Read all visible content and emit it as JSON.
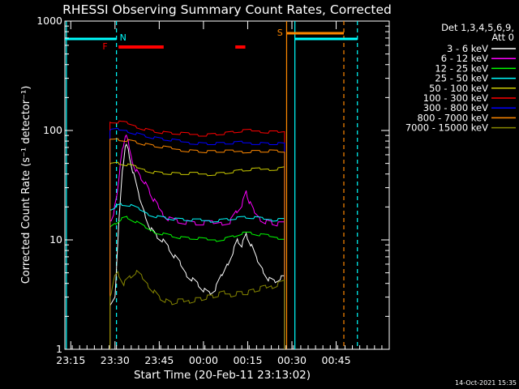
{
  "chart_data": {
    "type": "line",
    "title": "RHESSI Observing Summary Count Rates, Corrected",
    "xlabel": "Start Time (20-Feb-11 23:13:02)",
    "ylabel": "Corrected Count Rate (s⁻¹ detector⁻¹)",
    "y_scale": "log",
    "ylim": [
      1,
      1000
    ],
    "y_ticks": [
      {
        "value": 1,
        "label": "1"
      },
      {
        "value": 10,
        "label": "10"
      },
      {
        "value": 100,
        "label": "100"
      },
      {
        "value": 1000,
        "label": "1000"
      }
    ],
    "x_unit": "minutes after 23:13:02",
    "xlim": [
      0,
      110
    ],
    "x_ticks": [
      {
        "t": 2,
        "label": "23:15"
      },
      {
        "t": 17,
        "label": "23:30"
      },
      {
        "t": 32,
        "label": "23:45"
      },
      {
        "t": 47,
        "label": "00:00"
      },
      {
        "t": 62,
        "label": "00:15"
      },
      {
        "t": 77,
        "label": "00:30"
      },
      {
        "t": 92,
        "label": "00:45"
      }
    ],
    "legend_header": [
      "Det 1,3,4,5,6,9,",
      "Att 0"
    ],
    "legend_position": "top-right, outside",
    "series": [
      {
        "name": "3 - 6 keV",
        "color": "#ffffff",
        "points": [
          [
            15.3,
            2.5
          ],
          [
            17,
            3
          ],
          [
            18,
            11
          ],
          [
            19.5,
            42
          ],
          [
            20.5,
            75
          ],
          [
            21.5,
            65
          ],
          [
            23,
            42
          ],
          [
            25,
            25
          ],
          [
            27,
            18
          ],
          [
            29,
            13
          ],
          [
            31,
            11
          ],
          [
            33,
            10
          ],
          [
            35,
            8.5
          ],
          [
            37,
            7
          ],
          [
            39,
            6
          ],
          [
            41,
            5
          ],
          [
            43,
            4.5
          ],
          [
            45,
            4
          ],
          [
            47,
            3.5
          ],
          [
            49,
            3.2
          ],
          [
            51,
            3.5
          ],
          [
            53,
            4.5
          ],
          [
            55,
            6
          ],
          [
            57,
            8
          ],
          [
            58.5,
            10
          ],
          [
            60,
            9
          ],
          [
            61.5,
            11
          ],
          [
            63,
            9
          ],
          [
            65,
            6.5
          ],
          [
            67,
            5.5
          ],
          [
            69,
            4.5
          ],
          [
            71,
            4.2
          ],
          [
            73,
            4.5
          ],
          [
            74.5,
            4.5
          ]
        ]
      },
      {
        "name": "6 - 12 keV",
        "color": "#ff00ff",
        "points": [
          [
            15.3,
            15
          ],
          [
            16.5,
            18
          ],
          [
            17.5,
            24
          ],
          [
            18.5,
            42
          ],
          [
            19.5,
            65
          ],
          [
            20.5,
            90
          ],
          [
            21.5,
            75
          ],
          [
            22.5,
            58
          ],
          [
            24,
            45
          ],
          [
            25.5,
            38
          ],
          [
            27,
            34
          ],
          [
            28.5,
            28
          ],
          [
            30,
            23
          ],
          [
            31.5,
            20
          ],
          [
            33,
            18
          ],
          [
            35,
            16
          ],
          [
            38,
            15
          ],
          [
            41,
            14.5
          ],
          [
            44,
            14
          ],
          [
            47,
            14
          ],
          [
            50,
            14
          ],
          [
            53,
            14.5
          ],
          [
            56,
            15
          ],
          [
            58,
            18
          ],
          [
            60,
            21
          ],
          [
            61.5,
            27
          ],
          [
            62.5,
            22
          ],
          [
            64,
            18
          ],
          [
            66,
            16
          ],
          [
            68,
            15
          ],
          [
            70,
            14.5
          ],
          [
            72,
            14
          ],
          [
            74.5,
            14
          ]
        ]
      },
      {
        "name": "12 - 25 keV",
        "color": "#00ff00",
        "points": [
          [
            15.3,
            13
          ],
          [
            17,
            14
          ],
          [
            19,
            15.5
          ],
          [
            21,
            16
          ],
          [
            24,
            14.5
          ],
          [
            27,
            13
          ],
          [
            30,
            12
          ],
          [
            33,
            11.5
          ],
          [
            36,
            11
          ],
          [
            39,
            10.5
          ],
          [
            42,
            10.3
          ],
          [
            45,
            10.2
          ],
          [
            48,
            10
          ],
          [
            51,
            10
          ],
          [
            54,
            10.3
          ],
          [
            57,
            10.8
          ],
          [
            60,
            11.5
          ],
          [
            63,
            11.5
          ],
          [
            66,
            11
          ],
          [
            69,
            10.8
          ],
          [
            72,
            10.5
          ],
          [
            74.5,
            10.5
          ]
        ]
      },
      {
        "name": "25 - 50 keV",
        "color": "#00ffff",
        "points": [
          [
            15.3,
            19
          ],
          [
            17,
            20
          ],
          [
            19,
            21
          ],
          [
            22,
            20.5
          ],
          [
            25,
            19
          ],
          [
            28,
            17.5
          ],
          [
            31,
            16.5
          ],
          [
            34,
            16
          ],
          [
            37,
            15.5
          ],
          [
            40,
            15.3
          ],
          [
            43,
            15
          ],
          [
            46,
            15
          ],
          [
            49,
            15
          ],
          [
            52,
            15.2
          ],
          [
            55,
            15.5
          ],
          [
            58,
            15.8
          ],
          [
            61,
            16
          ],
          [
            64,
            15.8
          ],
          [
            67,
            15.5
          ],
          [
            70,
            15.3
          ],
          [
            72,
            15.5
          ],
          [
            74.5,
            15.5
          ]
        ]
      },
      {
        "name": "50 - 100 keV",
        "color": "#cccc00",
        "points": [
          [
            15.3,
            49
          ],
          [
            18,
            50
          ],
          [
            21,
            48
          ],
          [
            24,
            46
          ],
          [
            27,
            44
          ],
          [
            30,
            42
          ],
          [
            33,
            41
          ],
          [
            36,
            40.5
          ],
          [
            39,
            40
          ],
          [
            42,
            40
          ],
          [
            45,
            40
          ],
          [
            48,
            40
          ],
          [
            51,
            40.5
          ],
          [
            54,
            41
          ],
          [
            57,
            42
          ],
          [
            60,
            43
          ],
          [
            63,
            43.5
          ],
          [
            66,
            44
          ],
          [
            69,
            44.5
          ],
          [
            72,
            45
          ],
          [
            74.5,
            46
          ]
        ]
      },
      {
        "name": "100 - 300 keV",
        "color": "#ff0000",
        "points": [
          [
            15.3,
            119
          ],
          [
            18,
            118
          ],
          [
            21,
            116
          ],
          [
            24,
            110
          ],
          [
            27,
            104
          ],
          [
            30,
            99
          ],
          [
            33,
            96
          ],
          [
            36,
            94
          ],
          [
            39,
            93
          ],
          [
            42,
            92
          ],
          [
            45,
            92
          ],
          [
            48,
            92
          ],
          [
            51,
            93
          ],
          [
            54,
            94
          ],
          [
            57,
            96
          ],
          [
            60,
            98
          ],
          [
            63,
            99
          ],
          [
            66,
            99
          ],
          [
            69,
            98
          ],
          [
            72,
            98
          ],
          [
            74.5,
            100
          ]
        ]
      },
      {
        "name": "300 - 800 keV",
        "color": "#0000ff",
        "points": [
          [
            15.3,
            99
          ],
          [
            18,
            101
          ],
          [
            21,
            100
          ],
          [
            24,
            95
          ],
          [
            27,
            90
          ],
          [
            30,
            86
          ],
          [
            33,
            83
          ],
          [
            36,
            81
          ],
          [
            39,
            79
          ],
          [
            42,
            78
          ],
          [
            45,
            77
          ],
          [
            48,
            76
          ],
          [
            51,
            76
          ],
          [
            54,
            76
          ],
          [
            57,
            76
          ],
          [
            60,
            77
          ],
          [
            63,
            77
          ],
          [
            66,
            77
          ],
          [
            69,
            76
          ],
          [
            72,
            76
          ],
          [
            74.5,
            75
          ]
        ]
      },
      {
        "name": "800 - 7000 keV",
        "color": "#ff8800",
        "points": [
          [
            15.3,
            83
          ],
          [
            18,
            84
          ],
          [
            21,
            82
          ],
          [
            24,
            79
          ],
          [
            27,
            75
          ],
          [
            30,
            72
          ],
          [
            33,
            70
          ],
          [
            36,
            68
          ],
          [
            39,
            67
          ],
          [
            42,
            66
          ],
          [
            45,
            65
          ],
          [
            48,
            64
          ],
          [
            51,
            64
          ],
          [
            54,
            64
          ],
          [
            57,
            64
          ],
          [
            60,
            64.5
          ],
          [
            63,
            65
          ],
          [
            66,
            65
          ],
          [
            69,
            65
          ],
          [
            72,
            64.5
          ],
          [
            74.5,
            64
          ]
        ]
      },
      {
        "name": "7000 - 15000 keV",
        "color": "#888800",
        "points": [
          [
            15.3,
            3
          ],
          [
            16.5,
            4.5
          ],
          [
            18,
            5
          ],
          [
            20,
            4
          ],
          [
            22,
            4.5
          ],
          [
            24,
            5
          ],
          [
            26,
            4.5
          ],
          [
            28,
            4
          ],
          [
            30,
            3.5
          ],
          [
            32,
            3
          ],
          [
            34,
            2.8
          ],
          [
            36,
            2.6
          ],
          [
            38,
            2.7
          ],
          [
            40,
            2.7
          ],
          [
            42,
            2.8
          ],
          [
            44,
            2.9
          ],
          [
            46,
            2.9
          ],
          [
            48,
            3
          ],
          [
            50,
            3
          ],
          [
            52,
            3.1
          ],
          [
            54,
            3.2
          ],
          [
            56,
            3.2
          ],
          [
            58,
            3.3
          ],
          [
            60,
            3.3
          ],
          [
            62,
            3.3
          ],
          [
            64,
            3.4
          ],
          [
            66,
            3.5
          ],
          [
            68,
            3.6
          ],
          [
            70,
            3.8
          ],
          [
            72,
            4
          ],
          [
            74.5,
            4.2
          ]
        ]
      }
    ],
    "annotations": [
      {
        "label": "N",
        "t": 17.5,
        "color": "#00ffff"
      },
      {
        "label": "F",
        "t": 15.6,
        "color": "#ff0000"
      },
      {
        "label": "S",
        "t": 72.8,
        "color": "#ff8800"
      }
    ],
    "flare_flags": [
      {
        "t0": 18.2,
        "t1": 33.5,
        "color": "#ff0000"
      },
      {
        "t0": 57.8,
        "t1": 61.2,
        "color": "#ff0000"
      }
    ],
    "saa_flags": [
      {
        "t0": 75.2,
        "t1": 94.6,
        "color": "#ff8800"
      }
    ],
    "night_flags": [
      {
        "t0": 0,
        "t1": 17.5,
        "color": "#00ffff"
      },
      {
        "t0": 78,
        "t1": 99.2,
        "color": "#00ffff"
      }
    ],
    "vertical_lines": [
      {
        "t": 0.5,
        "color": "#00ffff",
        "style": "solid"
      },
      {
        "t": 17.5,
        "color": "#00ffff",
        "style": "dashed"
      },
      {
        "t": 78,
        "color": "#00ffff",
        "style": "solid"
      },
      {
        "t": 99.2,
        "color": "#00ffff",
        "style": "dashed"
      },
      {
        "t": 75.2,
        "color": "#ff8800",
        "style": "solid"
      },
      {
        "t": 94.6,
        "color": "#ff8800",
        "style": "dashed"
      }
    ],
    "grid": false
  },
  "footer": {
    "date": "14-Oct-2021 15:35"
  }
}
